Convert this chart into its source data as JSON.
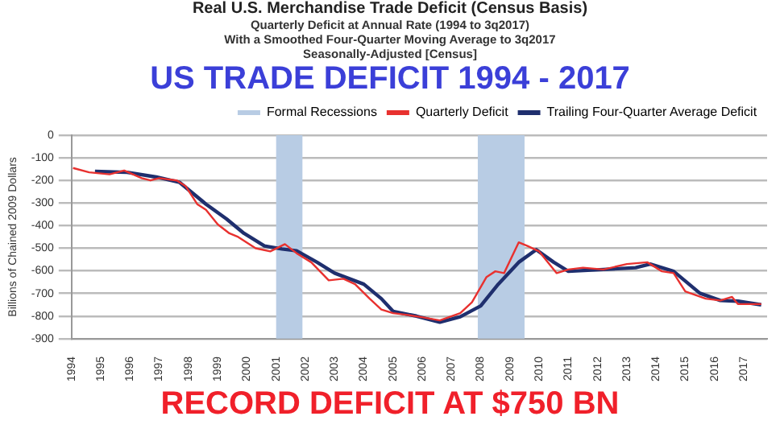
{
  "chart_data": {
    "type": "line",
    "title": "Real U.S. Merchandise Trade Deficit (Census Basis)",
    "subtitle": "Quarterly Deficit at Annual Rate (1994 to 3q2017)\nWith a Smoothed Four-Quarter Moving Average to 3q2017\nSeasonally-Adjusted [Census]",
    "ylabel": "Billions of Chained 2009 Dollars",
    "annotations": [
      "US TRADE DEFICIT 1994 - 2017",
      "RECORD DEFICIT AT $750 BN"
    ],
    "xlim": [
      1994,
      2017.8
    ],
    "xticks": [
      1994,
      1995,
      1996,
      1997,
      1998,
      1999,
      2000,
      2001,
      2002,
      2003,
      2004,
      2005,
      2006,
      2007,
      2008,
      2009,
      2010,
      2011,
      2012,
      2013,
      2014,
      2015,
      2016,
      2017
    ],
    "ylim": [
      -900,
      0
    ],
    "yticks": [
      0,
      -100,
      -200,
      -300,
      -400,
      -500,
      -600,
      -700,
      -800,
      -900
    ],
    "grid": "y",
    "legend": "top right",
    "marker": "none",
    "line_style": "solid",
    "bands": [
      {
        "axis": "x",
        "from": 2001.0,
        "to": 2001.9,
        "label": "Formal Recessions",
        "color": "#b8cce4"
      },
      {
        "axis": "x",
        "from": 2007.9,
        "to": 2009.5,
        "color": "#b8cce4"
      }
    ],
    "series": [
      {
        "name": "Quarterly Deficit",
        "color": "#e8312f",
        "x": [
          1994.05,
          1994.6,
          1995.3,
          1995.8,
          1996.4,
          1996.7,
          1997.0,
          1997.6,
          1997.9,
          1998.3,
          1998.6,
          1999.0,
          1999.4,
          1999.7,
          2000.3,
          2000.8,
          2001.3,
          2001.7,
          2002.2,
          2002.8,
          2003.3,
          2003.7,
          2004.2,
          2004.6,
          2005.0,
          2005.5,
          2005.9,
          2006.6,
          2007.3,
          2007.7,
          2008.2,
          2008.5,
          2008.8,
          2009.3,
          2009.6,
          2010.0,
          2010.6,
          2011.0,
          2011.5,
          2012.2,
          2013.0,
          2013.7,
          2014.2,
          2014.6,
          2015.0,
          2015.7,
          2016.2,
          2016.6,
          2016.8,
          2017.6
        ],
        "values": [
          -145,
          -164,
          -173,
          -156,
          -190,
          -200,
          -190,
          -200,
          -225,
          -305,
          -330,
          -394,
          -434,
          -450,
          -500,
          -514,
          -482,
          -522,
          -562,
          -642,
          -635,
          -659,
          -723,
          -771,
          -787,
          -795,
          -803,
          -819,
          -787,
          -739,
          -627,
          -602,
          -610,
          -474,
          -490,
          -514,
          -610,
          -594,
          -586,
          -594,
          -570,
          -562,
          -602,
          -610,
          -691,
          -723,
          -731,
          -715,
          -747,
          -747
        ]
      },
      {
        "name": "Trailing Four-Quarter Average Deficit",
        "color": "#1f2f6e",
        "x": [
          1994.8,
          1995.9,
          1996.9,
          1997.7,
          1998.6,
          1999.3,
          1999.9,
          2000.6,
          2001.2,
          2001.7,
          2002.4,
          2003.0,
          2004.0,
          2004.6,
          2005.0,
          2005.8,
          2006.6,
          2007.3,
          2008.0,
          2008.6,
          2009.3,
          2009.9,
          2010.5,
          2011.0,
          2012.2,
          2013.3,
          2013.8,
          2014.6,
          2015.5,
          2016.2,
          2016.8,
          2017.6
        ],
        "values": [
          -160,
          -164,
          -185,
          -209,
          -305,
          -370,
          -434,
          -490,
          -503,
          -511,
          -562,
          -610,
          -659,
          -723,
          -779,
          -800,
          -827,
          -803,
          -755,
          -659,
          -562,
          -506,
          -562,
          -602,
          -594,
          -586,
          -570,
          -602,
          -699,
          -731,
          -734,
          -750
        ]
      }
    ]
  }
}
